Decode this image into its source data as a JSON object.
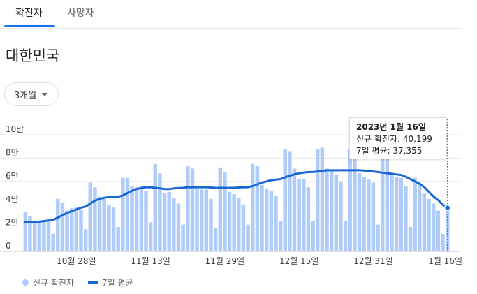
{
  "tabs": [
    {
      "label": "확진자"
    },
    {
      "label": "사망자"
    }
  ],
  "region_title": "대한민국",
  "period_selector": {
    "label": "3개월"
  },
  "tooltip": {
    "date": "2023년 1월 16일",
    "new_cases_text": "신규 확진자: 40,199",
    "avg_text": "7일 평균: 37,355"
  },
  "legend": {
    "bars": "신규 확진자",
    "line": "7일 평균"
  },
  "colors": {
    "bar": "#aecbfa",
    "line": "#1967d2",
    "accent": "#1a73e8"
  },
  "chart_data": {
    "type": "bar",
    "ylim": [
      0,
      100000
    ],
    "y_ticks": [
      {
        "value": 0,
        "label": "0"
      },
      {
        "value": 20000,
        "label": "2만"
      },
      {
        "value": 40000,
        "label": "4만"
      },
      {
        "value": 60000,
        "label": "6만"
      },
      {
        "value": 80000,
        "label": "8만"
      },
      {
        "value": 100000,
        "label": "10만"
      }
    ],
    "x_ticks": [
      {
        "index": 11,
        "label": "10월 28일"
      },
      {
        "index": 27,
        "label": "11월 13일"
      },
      {
        "index": 43,
        "label": "11월 29일"
      },
      {
        "index": 59,
        "label": "12월 15일"
      },
      {
        "index": 75,
        "label": "12월 31일"
      },
      {
        "index": 91,
        "label": "1월 16일"
      }
    ],
    "series": [
      {
        "name": "신규 확진자",
        "type": "bar",
        "values": [
          34000,
          30000,
          26000,
          25000,
          27000,
          26000,
          15000,
          45000,
          42000,
          35000,
          37000,
          38000,
          36000,
          19000,
          59000,
          55000,
          47000,
          45000,
          40000,
          38000,
          21000,
          63000,
          63000,
          56000,
          55000,
          55000,
          52000,
          25000,
          75000,
          67000,
          50000,
          51000,
          46000,
          41000,
          23000,
          73000,
          71000,
          54000,
          53000,
          53000,
          45000,
          20000,
          72000,
          68000,
          51000,
          49000,
          46000,
          40000,
          23000,
          75000,
          73000,
          57000,
          54000,
          52000,
          48000,
          26000,
          88000,
          86000,
          71000,
          62000,
          62000,
          55000,
          26000,
          88000,
          89000,
          71000,
          70000,
          66000,
          60000,
          26000,
          88000,
          85000,
          67000,
          64000,
          62000,
          59000,
          23000,
          87000,
          84000,
          66000,
          64000,
          63000,
          56000,
          21000,
          63000,
          58000,
          50000,
          45000,
          41000,
          35000,
          15000,
          40199
        ]
      },
      {
        "name": "7일 평균",
        "type": "line",
        "values": [
          25000,
          25000,
          25000,
          25500,
          26000,
          26500,
          27000,
          29000,
          31000,
          33000,
          34500,
          36000,
          37500,
          38500,
          41000,
          43500,
          45000,
          46000,
          46500,
          46800,
          46800,
          48000,
          50000,
          52000,
          53500,
          54500,
          55000,
          55000,
          54500,
          54000,
          53500,
          53500,
          54000,
          54300,
          54500,
          55000,
          55000,
          55000,
          55000,
          55000,
          54800,
          54500,
          54500,
          54500,
          54500,
          54500,
          54800,
          55000,
          55000,
          56000,
          57500,
          59000,
          60000,
          61000,
          61500,
          62000,
          63500,
          65000,
          66000,
          67000,
          67500,
          68000,
          68000,
          68500,
          69000,
          69500,
          69500,
          69500,
          69500,
          69500,
          69500,
          69500,
          69500,
          69300,
          69000,
          68500,
          68000,
          67500,
          67000,
          66500,
          66000,
          65500,
          64000,
          62000,
          60000,
          58000,
          55000,
          51000,
          47000,
          44000,
          40000,
          37355
        ]
      }
    ]
  }
}
